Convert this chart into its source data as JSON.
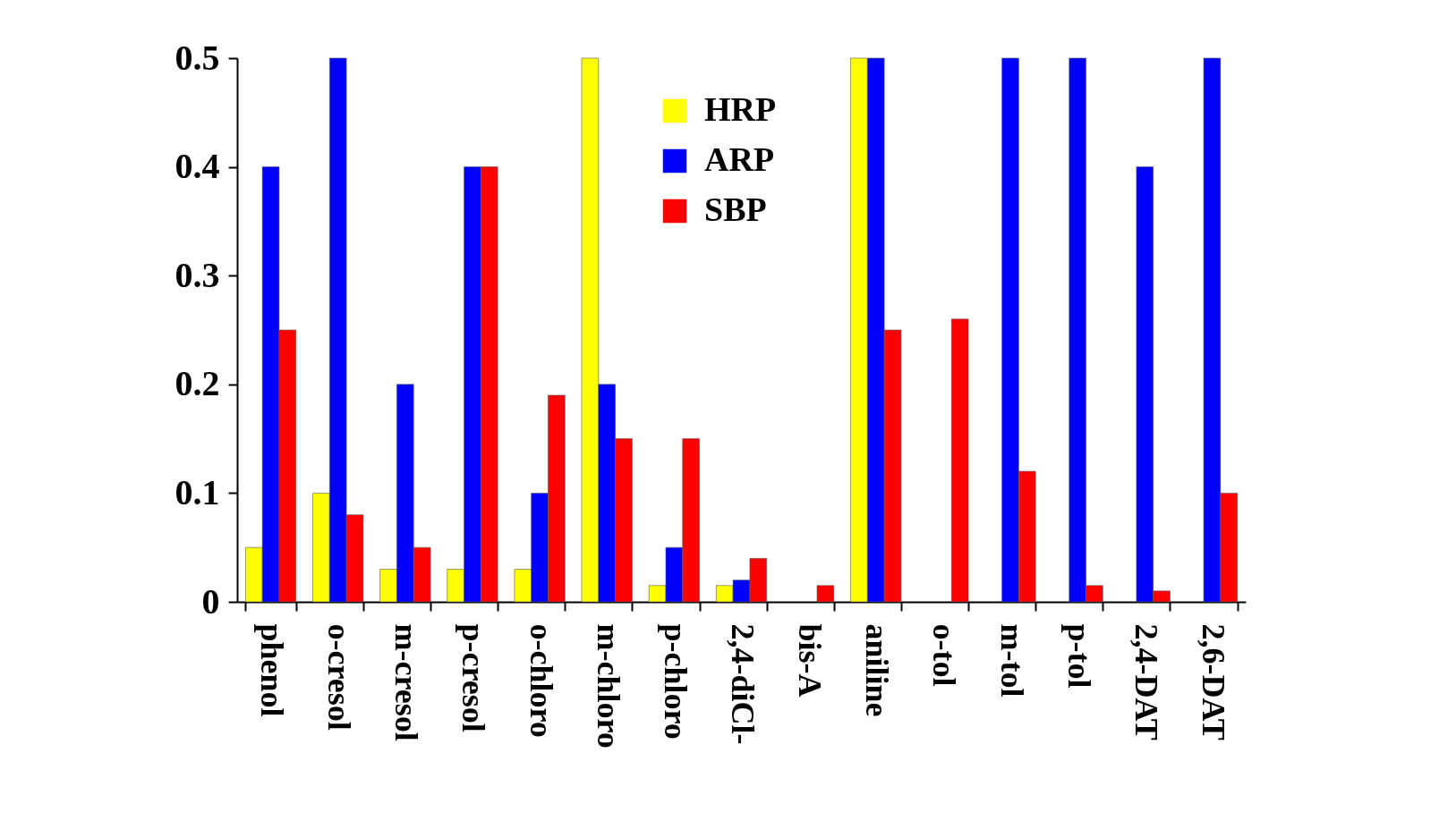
{
  "chart_data": {
    "type": "bar",
    "categories": [
      "phenol",
      "o-cresol",
      "m-cresol",
      "p-cresol",
      "o-chloro",
      "m-chloro",
      "p-chloro",
      "2,4-diCl-",
      "bis-A",
      "aniline",
      "o-tol",
      "m-tol",
      "p-tol",
      "2,4-DAT",
      "2,6-DAT"
    ],
    "series": [
      {
        "name": "HRP",
        "color": "#ffff00",
        "values": [
          0.05,
          0.1,
          0.03,
          0.03,
          0.03,
          0.5,
          0.015,
          0.015,
          null,
          0.5,
          null,
          null,
          null,
          null,
          null
        ]
      },
      {
        "name": "ARP",
        "color": "#0000ff",
        "values": [
          0.4,
          0.5,
          0.2,
          0.4,
          0.1,
          0.2,
          0.05,
          0.02,
          null,
          0.5,
          null,
          0.5,
          0.5,
          0.4,
          0.5
        ]
      },
      {
        "name": "SBP",
        "color": "#ff0000",
        "values": [
          0.25,
          0.08,
          0.05,
          0.4,
          0.19,
          0.15,
          0.15,
          0.04,
          0.015,
          0.25,
          0.26,
          0.12,
          0.015,
          0.01,
          0.1
        ]
      }
    ],
    "ylim": [
      0,
      0.5
    ],
    "yticks": [
      0,
      0.1,
      0.2,
      0.3,
      0.4,
      0.5
    ],
    "grid": false,
    "legend": "top"
  }
}
